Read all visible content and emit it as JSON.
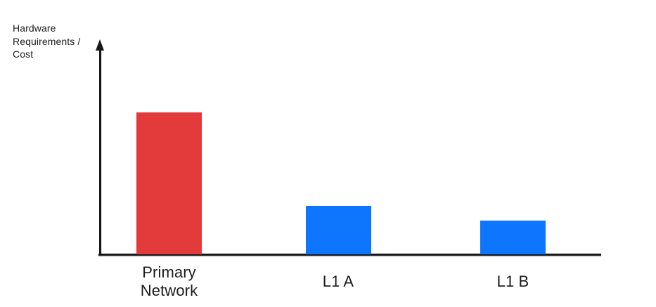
{
  "chart_data": {
    "type": "bar",
    "title": "",
    "xlabel": "",
    "ylabel": "Hardware\nRequirements /\nCost",
    "categories": [
      "Primary Network",
      "L1 A",
      "L1 B"
    ],
    "values": [
      100,
      34,
      24
    ],
    "ylim": [
      0,
      148
    ],
    "grid": false,
    "legend": false,
    "y_axis_has_arrow": true,
    "bar_colors": [
      "#E33B3B",
      "#0E76FC",
      "#0E76FC"
    ],
    "axis_color": "#181818",
    "text_color": "#1C1C1C",
    "background_color": "#FFFFFF"
  }
}
